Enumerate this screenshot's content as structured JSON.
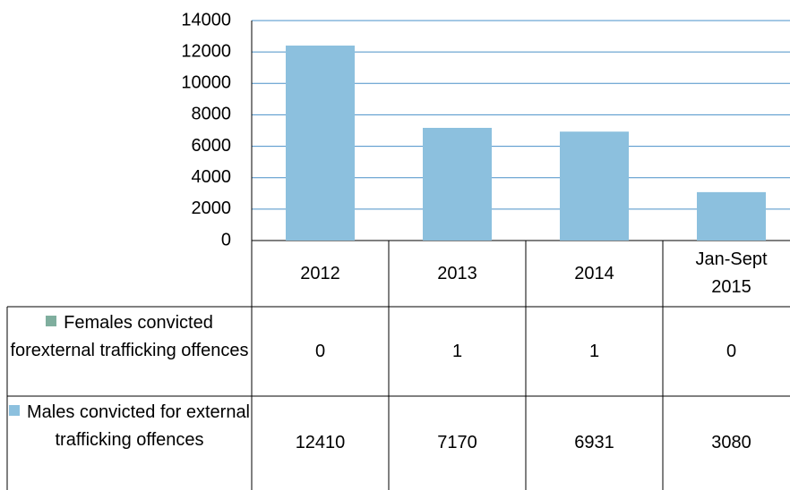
{
  "chart_data": {
    "type": "bar",
    "stacked": true,
    "categories": [
      "2012",
      "2013",
      "2014",
      "Jan-Sept 2015"
    ],
    "series": [
      {
        "name": "Females convicted forexternal trafficking offences",
        "color": "#7fae9e",
        "values": [
          0,
          1,
          1,
          0
        ]
      },
      {
        "name": "Males convicted for external trafficking offences",
        "color": "#8cc0de",
        "values": [
          12410,
          7170,
          6931,
          3080
        ]
      }
    ],
    "ylim": [
      0,
      14000
    ],
    "yticks": [
      0,
      2000,
      4000,
      6000,
      8000,
      10000,
      12000,
      14000
    ],
    "grid": true
  }
}
